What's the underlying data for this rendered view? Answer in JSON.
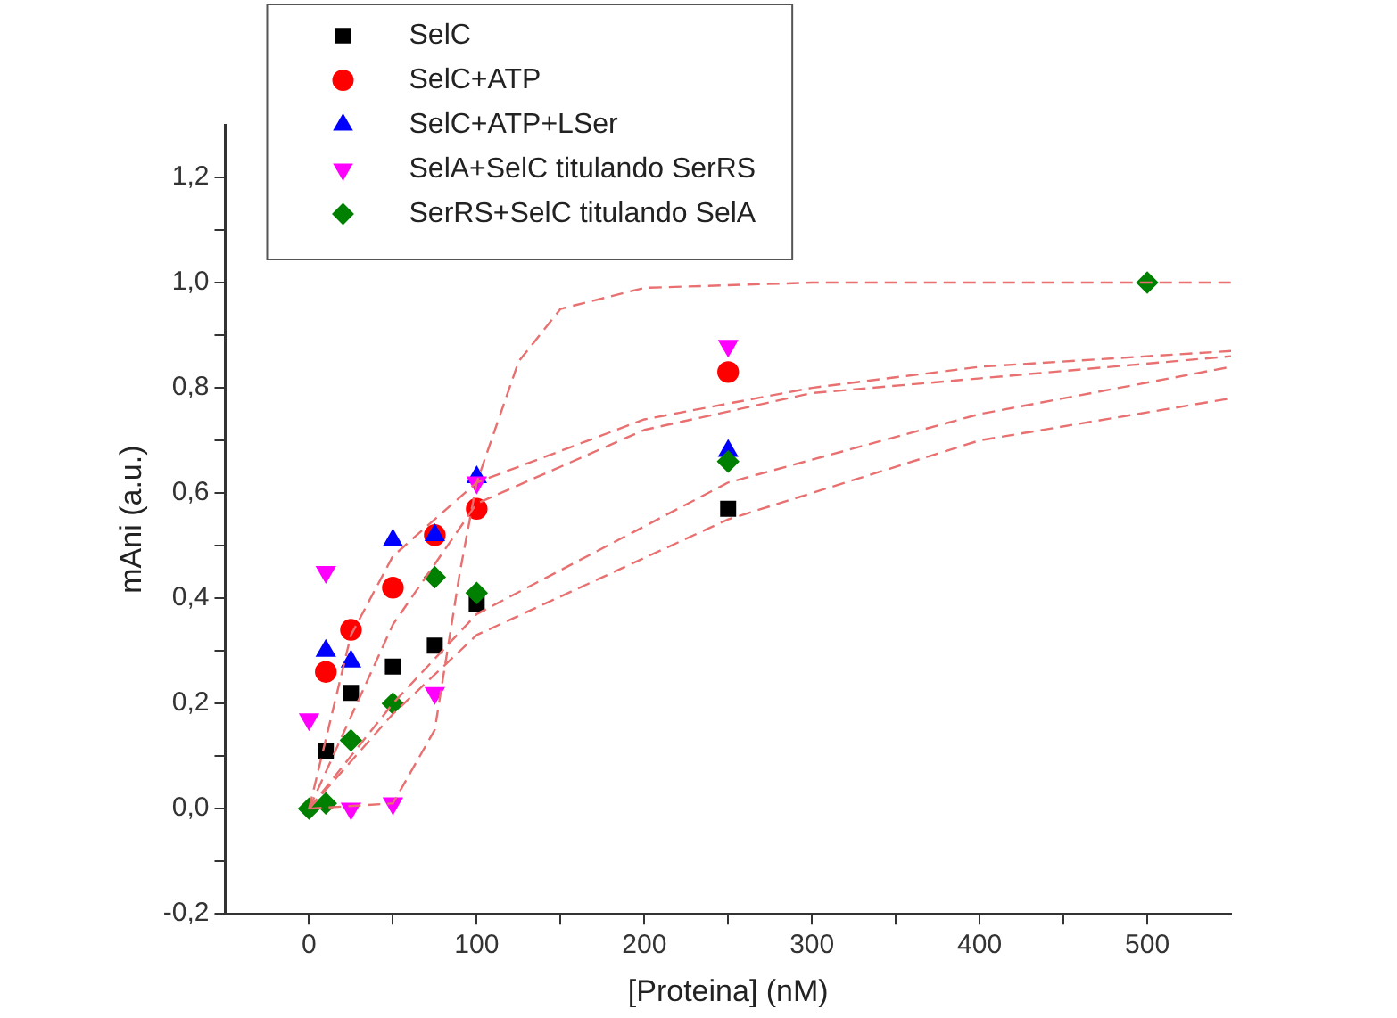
{
  "chart_data": {
    "type": "scatter",
    "xlabel": "[Proteina] (nM)",
    "ylabel": "mAni (a.u.)",
    "x": [
      0,
      10,
      25,
      50,
      75,
      100,
      250,
      500
    ],
    "xlim": [
      -50,
      550
    ],
    "xticks": [
      0,
      {
        "value": 50,
        "label": null
      },
      100,
      {
        "value": 150,
        "label": null
      },
      200,
      {
        "value": 250,
        "label": null
      },
      300,
      {
        "value": 350,
        "label": null
      },
      400,
      {
        "value": 450,
        "label": null
      },
      500
    ],
    "ylim": [
      -0.2,
      1.3
    ],
    "yticks": [
      {
        "value": -0.2,
        "label": "-0,2"
      },
      {
        "value": -0.1,
        "label": null
      },
      {
        "value": 0,
        "label": "0,0"
      },
      {
        "value": 0.1,
        "label": null
      },
      {
        "value": 0.2,
        "label": "0,2"
      },
      {
        "value": 0.3,
        "label": null
      },
      {
        "value": 0.4,
        "label": "0,4"
      },
      {
        "value": 0.5,
        "label": null
      },
      {
        "value": 0.6,
        "label": "0,6"
      },
      {
        "value": 0.7,
        "label": null
      },
      {
        "value": 0.8,
        "label": "0,8"
      },
      {
        "value": 0.9,
        "label": null
      },
      {
        "value": 1.0,
        "label": "1,0"
      },
      {
        "value": 1.1,
        "label": null
      },
      {
        "value": 1.2,
        "label": "1,2"
      }
    ],
    "grid": false,
    "legend": "top left",
    "series": [
      {
        "name": "SelC",
        "color": "#000000",
        "marker": "square",
        "values": [
          null,
          0.11,
          0.22,
          0.27,
          0.31,
          0.39,
          0.57,
          null
        ]
      },
      {
        "name": "SelC+ATP",
        "color": "#ff0000",
        "marker": "circle",
        "values": [
          null,
          0.26,
          0.34,
          0.42,
          0.52,
          0.57,
          0.83,
          null
        ]
      },
      {
        "name": "SelC+ATP+LSer",
        "color": "#0000ff",
        "marker": "triangle",
        "values": [
          null,
          0.3,
          0.28,
          0.51,
          0.52,
          0.63,
          0.68,
          null
        ]
      },
      {
        "name": "SelA+SelC titulando SerRS",
        "color": "#ff00ff",
        "marker": "triangle-down",
        "values": [
          0.17,
          0.45,
          0.0,
          0.01,
          0.22,
          0.62,
          0.88,
          null
        ]
      },
      {
        "name": "SerRS+SelC titulando SelA",
        "color": "#008000",
        "marker": "diamond",
        "values": [
          0,
          0.01,
          0.13,
          0.2,
          0.44,
          0.41,
          0.66,
          1.0
        ]
      },
      {
        "type": "line",
        "color": "#e87070",
        "marker": "none",
        "line_style": "dashed",
        "x": [
          0,
          50,
          75,
          90,
          100,
          125,
          150,
          200,
          300,
          550
        ],
        "values": [
          0,
          0.01,
          0.15,
          0.45,
          0.62,
          0.85,
          0.95,
          0.99,
          1.0,
          1.0
        ]
      },
      {
        "type": "line",
        "color": "#e87070",
        "marker": "none",
        "line_style": "dashed",
        "x": [
          0,
          25,
          50,
          100,
          200,
          300,
          400,
          550
        ],
        "values": [
          0,
          0.33,
          0.48,
          0.62,
          0.74,
          0.8,
          0.84,
          0.87
        ]
      },
      {
        "type": "line",
        "color": "#e87070",
        "marker": "none",
        "line_style": "dashed",
        "x": [
          0,
          50,
          100,
          200,
          300,
          550
        ],
        "values": [
          0,
          0.35,
          0.58,
          0.72,
          0.79,
          0.86
        ]
      },
      {
        "type": "line",
        "color": "#e87070",
        "marker": "none",
        "line_style": "dashed",
        "x": [
          0,
          50,
          100,
          250,
          400,
          550
        ],
        "values": [
          0,
          0.2,
          0.37,
          0.62,
          0.75,
          0.84
        ]
      },
      {
        "type": "line",
        "color": "#e87070",
        "marker": "none",
        "line_style": "dashed",
        "x": [
          0,
          50,
          100,
          250,
          400,
          550
        ],
        "values": [
          0,
          0.18,
          0.33,
          0.55,
          0.7,
          0.78
        ]
      }
    ]
  }
}
